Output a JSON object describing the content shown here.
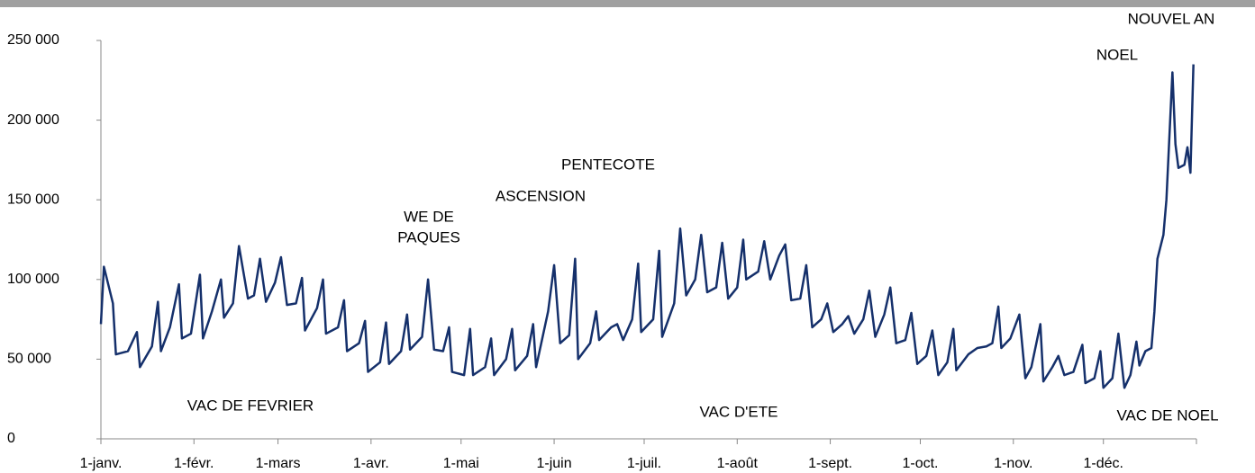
{
  "chart_data": {
    "type": "line",
    "annotations": [
      "NOUVEL AN",
      "NOEL",
      "PENTECOTE",
      "ASCENSION",
      "WE DE",
      "PAQUES",
      "VAC DE FEVRIER",
      "VAC D'ETE",
      "VAC DE NOEL"
    ],
    "xlim": [
      0,
      365
    ],
    "xticks": [
      {
        "value": 0,
        "label": "1-janv."
      },
      {
        "value": 31,
        "label": "1-févr."
      },
      {
        "value": 59,
        "label": "1-mars"
      },
      {
        "value": 90,
        "label": "1-avr."
      },
      {
        "value": 120,
        "label": "1-mai"
      },
      {
        "value": 151,
        "label": "1-juin"
      },
      {
        "value": 181,
        "label": "1-juil."
      },
      {
        "value": 212,
        "label": "1-août"
      },
      {
        "value": 243,
        "label": "1-sept."
      },
      {
        "value": 273,
        "label": "1-oct."
      },
      {
        "value": 304,
        "label": "1-nov."
      },
      {
        "value": 334,
        "label": "1-déc."
      },
      365
    ],
    "ylim": [
      0,
      250000
    ],
    "yticks": [
      0,
      {
        "value": 50000,
        "label": "50 000"
      },
      {
        "value": 100000,
        "label": "100 000"
      },
      {
        "value": 150000,
        "label": "150 000"
      },
      {
        "value": 200000,
        "label": "200 000"
      },
      {
        "value": 250000,
        "label": "250 000"
      }
    ],
    "series": [
      {
        "color": "#15306b",
        "x": [
          0,
          1,
          4,
          5,
          9,
          12,
          13,
          17,
          19,
          20,
          23,
          26,
          27,
          30,
          33,
          34,
          37,
          40,
          41,
          44,
          46,
          49,
          51,
          53,
          55,
          58,
          60,
          62,
          65,
          67,
          68,
          72,
          74,
          75,
          79,
          81,
          82,
          86,
          88,
          89,
          93,
          95,
          96,
          100,
          102,
          103,
          107,
          109,
          111,
          114,
          116,
          117,
          121,
          123,
          124,
          128,
          130,
          131,
          135,
          137,
          138,
          142,
          144,
          145,
          149,
          151,
          153,
          156,
          158,
          159,
          163,
          165,
          166,
          170,
          172,
          174,
          177,
          179,
          180,
          184,
          186,
          187,
          191,
          193,
          195,
          198,
          200,
          202,
          205,
          207,
          209,
          212,
          214,
          215,
          219,
          221,
          223,
          226,
          228,
          230,
          233,
          235,
          237,
          240,
          242,
          244,
          247,
          249,
          251,
          254,
          256,
          258,
          261,
          263,
          265,
          268,
          270,
          272,
          275,
          277,
          279,
          282,
          284,
          285,
          289,
          292,
          295,
          297,
          299,
          300,
          303,
          306,
          308,
          310,
          313,
          314,
          317,
          319,
          321,
          324,
          327,
          328,
          331,
          333,
          334,
          337,
          339,
          341,
          343,
          345,
          346,
          348,
          350,
          351,
          352,
          354,
          355,
          357,
          358,
          359,
          361,
          362,
          363,
          364
        ],
        "values": [
          72000,
          108000,
          85000,
          53000,
          55000,
          67000,
          45000,
          58000,
          86000,
          55000,
          70000,
          97000,
          63000,
          66000,
          103000,
          63000,
          80000,
          100000,
          76000,
          85000,
          121000,
          88000,
          90000,
          113000,
          86000,
          98000,
          114000,
          84000,
          85000,
          101000,
          68000,
          82000,
          100000,
          66000,
          70000,
          87000,
          55000,
          60000,
          74000,
          42000,
          48000,
          73000,
          47000,
          55000,
          78000,
          56000,
          64000,
          100000,
          56000,
          55000,
          70000,
          42000,
          40000,
          69000,
          40000,
          45000,
          63000,
          40000,
          50000,
          69000,
          43000,
          52000,
          72000,
          45000,
          80000,
          109000,
          60000,
          65000,
          113000,
          50000,
          60000,
          80000,
          62000,
          70000,
          72000,
          62000,
          75000,
          110000,
          67000,
          75000,
          118000,
          64000,
          85000,
          132000,
          90000,
          100000,
          128000,
          92000,
          95000,
          123000,
          88000,
          95000,
          125000,
          100000,
          105000,
          124000,
          100000,
          115000,
          122000,
          87000,
          88000,
          109000,
          70000,
          75000,
          85000,
          67000,
          72000,
          77000,
          66000,
          75000,
          93000,
          64000,
          78000,
          95000,
          60000,
          62000,
          79000,
          47000,
          52000,
          68000,
          40000,
          48000,
          69000,
          43000,
          53000,
          57000,
          58000,
          60000,
          83000,
          57000,
          63000,
          78000,
          38000,
          45000,
          72000,
          36000,
          45000,
          52000,
          40000,
          42000,
          59000,
          35000,
          38000,
          55000,
          32000,
          38000,
          66000,
          32000,
          40000,
          61000,
          46000,
          55000,
          57000,
          80000,
          113000,
          128000,
          150000,
          230000,
          185000,
          170000,
          172000,
          183000,
          167000,
          235000
        ]
      }
    ]
  }
}
